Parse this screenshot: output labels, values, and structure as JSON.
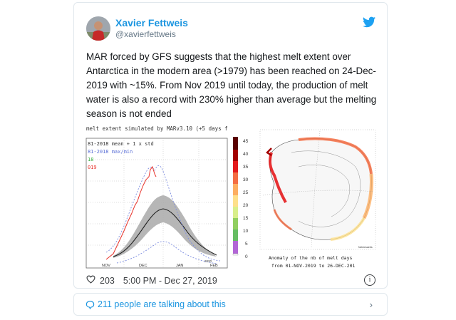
{
  "tweet": {
    "author_name": "Xavier Fettweis",
    "author_handle": "@xavierfettweis",
    "text": "MAR forced by GFS suggests that the highest melt extent over Antarctica in the modern area (>1979) has been reached on 24-Dec-2019 with ~15%. From Nov 2019 until today, the production of melt water is also a record with 230% higher than average but the melting season is not ended",
    "likes": "203",
    "timestamp": "5:00 PM - Dec 27, 2019",
    "talking": "211 people are talking about this"
  },
  "media": {
    "chart_title": "melt extent simulated by MARv3.10 (+5 days f",
    "legend": [
      "81-2018 mean + 1 x std",
      "81-2018 max/min",
      "18",
      "019"
    ],
    "x_ticks": [
      "NOV",
      "DEC",
      "JAN",
      "FEB"
    ],
    "x_tick_extra": "2020",
    "colorbar_ticks": [
      "45",
      "40",
      "35",
      "30",
      "25",
      "20",
      "15",
      "10",
      "5",
      "0"
    ],
    "map_caption_1": "Anomaly of the nb of melt days",
    "map_caption_2": "from 01-NOV-2019 to 26-DEC-201",
    "map_credit": "Ncheesaerts"
  },
  "icons": {
    "bird": "twitter-bird-icon",
    "heart": "heart-icon",
    "info": "info-icon",
    "comment": "comment-icon",
    "chevron": "chevron-right-icon"
  },
  "colors": {
    "link": "#1b95e0",
    "border": "#e1e8ed",
    "series_current": "#e8332b"
  }
}
